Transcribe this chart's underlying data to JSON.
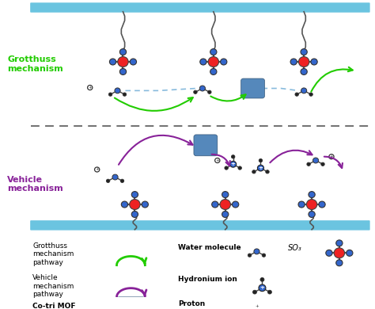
{
  "bg_color": "#ffffff",
  "membrane_color": "#6bc4e0",
  "grotthuss_color": "#22cc00",
  "vehicle_color": "#882299",
  "mof_color": "#5588bb",
  "red_center": "#ee2222",
  "blue_node": "#3366cc",
  "dark_node": "#222222",
  "dashed_line_color": "#88bbdd",
  "divider_color": "#666666",
  "grotthuss_label": "Grotthuss\nmechanism",
  "vehicle_label": "Vehicle\nmechanism",
  "legend_grotthuss_text": "Grotthuss\nmechanism\npathway",
  "legend_vehicle_text": "Vehicle\nmechanism\npathway",
  "legend_cotrimof_text": "Co-tri MOF",
  "legend_water_text": "Water molecule",
  "legend_hydronium_text": "Hydronium ion",
  "legend_proton_text": "Proton",
  "legend_so3_text": "SO₃"
}
